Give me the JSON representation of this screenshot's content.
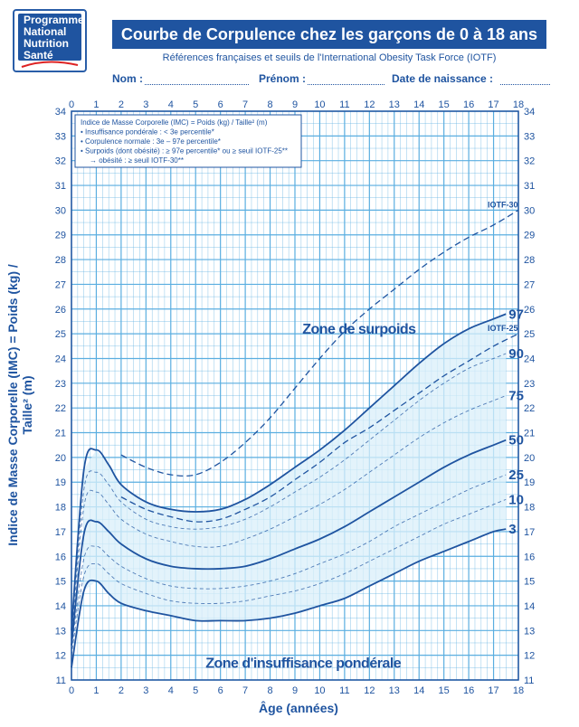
{
  "logo": {
    "lines": [
      "Programme",
      "National",
      "Nutrition",
      "Santé"
    ]
  },
  "header": {
    "title": "Courbe de Corpulence chez les garçons de 0 à 18 ans",
    "subtitle": "Références françaises et seuils de l'International Obesity Task Force (IOTF)"
  },
  "form": {
    "nom": "Nom :",
    "prenom": "Prénom :",
    "date": "Date de naissance :"
  },
  "legend_box": {
    "lines": [
      "Indice de Masse Corporelle (IMC) = Poids (kg) / Taille² (m)",
      "• Insuffisance pondérale : < 3e percentile*",
      "• Corpulence normale : 3e – 97e percentile*",
      "• Surpoids (dont obésité) : ≥ 97e percentile* ou ≥ seuil IOTF-25**",
      "→ obésité : ≥ seuil IOTF-30**"
    ]
  },
  "zones": {
    "surpoids": "Zone de surpoids",
    "insuffisance": "Zone d'insuffisance pondérale"
  },
  "colors": {
    "primary": "#1f54a0",
    "grid": "#5aaee0",
    "fill": "#d9effa"
  },
  "chart_data": {
    "type": "line",
    "xlabel": "Âge (années)",
    "ylabel": "Indice de Masse Corporelle (IMC) = Poids (kg) / Taille² (m)",
    "xlim": [
      0,
      18
    ],
    "ylim": [
      11,
      34
    ],
    "xticks": [
      0,
      1,
      2,
      3,
      4,
      5,
      6,
      7,
      8,
      9,
      10,
      11,
      12,
      13,
      14,
      15,
      16,
      17,
      18
    ],
    "yticks": [
      11,
      12,
      13,
      14,
      15,
      16,
      17,
      18,
      19,
      20,
      21,
      22,
      23,
      24,
      25,
      26,
      27,
      28,
      29,
      30,
      31,
      32,
      33,
      34
    ],
    "grid": true,
    "x": [
      0,
      0.5,
      1,
      1.5,
      2,
      3,
      4,
      5,
      6,
      7,
      8,
      9,
      10,
      11,
      12,
      13,
      14,
      15,
      16,
      17,
      17.5
    ],
    "series": [
      {
        "name": "97",
        "style": "solid",
        "values": [
          13.0,
          19.5,
          20.3,
          19.7,
          18.9,
          18.2,
          17.9,
          17.8,
          17.9,
          18.3,
          18.9,
          19.6,
          20.3,
          21.1,
          22.0,
          22.9,
          23.8,
          24.6,
          25.2,
          25.6,
          25.8
        ]
      },
      {
        "name": "90",
        "style": "dashed",
        "values": [
          12.8,
          18.7,
          19.4,
          18.9,
          18.2,
          17.5,
          17.2,
          17.1,
          17.2,
          17.5,
          18.0,
          18.6,
          19.2,
          19.9,
          20.7,
          21.5,
          22.3,
          23.0,
          23.6,
          24.0,
          24.2
        ]
      },
      {
        "name": "75",
        "style": "dashed",
        "values": [
          12.6,
          18.0,
          18.6,
          18.1,
          17.5,
          16.9,
          16.6,
          16.4,
          16.4,
          16.7,
          17.1,
          17.6,
          18.1,
          18.7,
          19.4,
          20.1,
          20.8,
          21.4,
          21.9,
          22.3,
          22.5
        ]
      },
      {
        "name": "50",
        "style": "solid",
        "values": [
          12.4,
          16.9,
          17.4,
          17.0,
          16.5,
          15.9,
          15.6,
          15.5,
          15.5,
          15.6,
          15.9,
          16.3,
          16.7,
          17.2,
          17.8,
          18.4,
          19.0,
          19.6,
          20.1,
          20.5,
          20.7
        ]
      },
      {
        "name": "25",
        "style": "dashed",
        "values": [
          12.2,
          15.9,
          16.4,
          16.0,
          15.6,
          15.1,
          14.8,
          14.7,
          14.7,
          14.8,
          15.0,
          15.3,
          15.7,
          16.1,
          16.6,
          17.2,
          17.7,
          18.2,
          18.7,
          19.1,
          19.3
        ]
      },
      {
        "name": "10",
        "style": "dashed",
        "values": [
          12.0,
          15.2,
          15.7,
          15.3,
          14.9,
          14.5,
          14.2,
          14.1,
          14.1,
          14.2,
          14.4,
          14.6,
          14.9,
          15.3,
          15.8,
          16.3,
          16.8,
          17.3,
          17.7,
          18.1,
          18.3
        ]
      },
      {
        "name": "3",
        "style": "solid",
        "values": [
          11.5,
          14.6,
          15.0,
          14.5,
          14.1,
          13.8,
          13.6,
          13.4,
          13.4,
          13.4,
          13.5,
          13.7,
          14.0,
          14.3,
          14.8,
          15.3,
          15.8,
          16.2,
          16.6,
          17.0,
          17.1
        ]
      }
    ],
    "iotf": [
      {
        "name": "IOTF-25",
        "style": "dashed",
        "x": [
          2,
          3,
          4,
          5,
          6,
          7,
          8,
          9,
          10,
          11,
          12,
          13,
          14,
          15,
          16,
          17,
          18
        ],
        "values": [
          18.4,
          17.9,
          17.6,
          17.4,
          17.5,
          17.9,
          18.4,
          19.1,
          19.8,
          20.6,
          21.2,
          21.9,
          22.6,
          23.3,
          23.9,
          24.5,
          25.0
        ]
      },
      {
        "name": "IOTF-30",
        "style": "dashed",
        "x": [
          2,
          3,
          4,
          5,
          6,
          7,
          8,
          9,
          10,
          11,
          12,
          13,
          14,
          15,
          16,
          17,
          18
        ],
        "values": [
          20.1,
          19.6,
          19.3,
          19.3,
          19.8,
          20.6,
          21.6,
          22.8,
          24.0,
          25.1,
          26.0,
          26.8,
          27.6,
          28.3,
          28.9,
          29.4,
          30.0
        ]
      }
    ]
  }
}
